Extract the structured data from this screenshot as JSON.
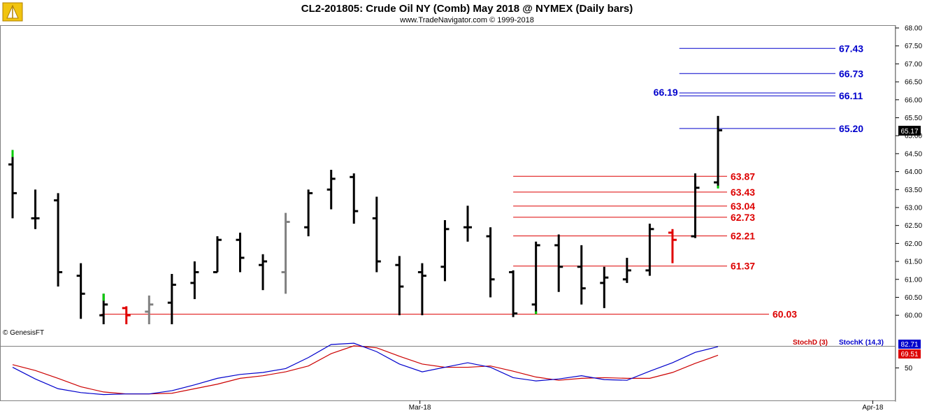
{
  "title": "CL2-201805:  Crude Oil NY (Comb) May 2018 @ NYMEX  (Daily bars)",
  "subtitle": "www.TradeNavigator.com © 1999-2018",
  "watermark": "© GenesisFT",
  "colors": {
    "bar": "#000000",
    "bar_gray": "#808080",
    "bar_green": "#00cc00",
    "bar_red": "#e00000",
    "level_blue": "#0000cc",
    "level_red": "#dd0000",
    "stoch_k": "#0000cc",
    "stoch_d": "#cc0000"
  },
  "chart_data": {
    "type": "ohlc",
    "price_axis": {
      "min": 59.75,
      "max": 68.0,
      "ticks": [
        "60.00",
        "60.50",
        "61.00",
        "61.50",
        "62.00",
        "62.50",
        "63.00",
        "63.50",
        "64.00",
        "64.50",
        "65.00",
        "65.50",
        "66.00",
        "66.50",
        "67.00",
        "67.50",
        "68.00"
      ]
    },
    "x_axis_labels": [
      {
        "label": "Mar-18",
        "bar_index": 17.9
      },
      {
        "label": "Apr-18",
        "bar_index": 37.8
      }
    ],
    "bars": [
      {
        "o": 64.2,
        "h": 64.6,
        "l": 62.7,
        "c": 63.4,
        "color": "green_top"
      },
      {
        "o": 62.7,
        "h": 63.5,
        "l": 62.4,
        "c": 62.7
      },
      {
        "o": 63.2,
        "h": 63.4,
        "l": 60.8,
        "c": 61.2
      },
      {
        "o": 61.1,
        "h": 61.45,
        "l": 59.9,
        "c": 60.6
      },
      {
        "o": 60.0,
        "h": 60.6,
        "l": 59.75,
        "c": 60.3,
        "color": "green_top"
      },
      {
        "o": 60.2,
        "h": 60.25,
        "l": 59.75,
        "c": 60.0,
        "color": "red"
      },
      {
        "o": 60.1,
        "h": 60.55,
        "l": 59.75,
        "c": 60.3,
        "color": "gray"
      },
      {
        "o": 60.35,
        "h": 61.15,
        "l": 59.75,
        "c": 60.85
      },
      {
        "o": 60.9,
        "h": 61.5,
        "l": 60.45,
        "c": 61.2
      },
      {
        "o": 61.2,
        "h": 62.2,
        "l": 61.2,
        "c": 62.1
      },
      {
        "o": 62.1,
        "h": 62.3,
        "l": 61.2,
        "c": 61.6
      },
      {
        "o": 61.4,
        "h": 61.7,
        "l": 60.7,
        "c": 61.5
      },
      {
        "o": 61.2,
        "h": 62.85,
        "l": 60.6,
        "c": 62.6,
        "color": "gray"
      },
      {
        "o": 62.45,
        "h": 63.5,
        "l": 62.2,
        "c": 63.4
      },
      {
        "o": 63.5,
        "h": 64.05,
        "l": 62.95,
        "c": 63.8
      },
      {
        "o": 63.85,
        "h": 63.95,
        "l": 62.55,
        "c": 62.9
      },
      {
        "o": 62.7,
        "h": 63.3,
        "l": 61.2,
        "c": 61.5
      },
      {
        "o": 61.4,
        "h": 61.65,
        "l": 60.0,
        "c": 60.8
      },
      {
        "o": 61.2,
        "h": 61.45,
        "l": 60.0,
        "c": 61.1
      },
      {
        "o": 61.35,
        "h": 62.65,
        "l": 60.95,
        "c": 62.4
      },
      {
        "o": 62.45,
        "h": 63.05,
        "l": 62.05,
        "c": 62.45
      },
      {
        "o": 62.2,
        "h": 62.45,
        "l": 60.5,
        "c": 61.0
      },
      {
        "o": 61.2,
        "h": 61.25,
        "l": 59.95,
        "c": 60.05
      },
      {
        "o": 60.3,
        "h": 62.05,
        "l": 60.05,
        "c": 61.95,
        "color": "green_bottom"
      },
      {
        "o": 61.95,
        "h": 62.25,
        "l": 60.65,
        "c": 61.35
      },
      {
        "o": 61.35,
        "h": 61.95,
        "l": 60.3,
        "c": 60.75
      },
      {
        "o": 60.9,
        "h": 61.35,
        "l": 60.2,
        "c": 61.05
      },
      {
        "o": 61.0,
        "h": 61.6,
        "l": 60.9,
        "c": 61.25
      },
      {
        "o": 61.25,
        "h": 62.55,
        "l": 61.1,
        "c": 62.4
      },
      {
        "o": 62.3,
        "h": 62.4,
        "l": 61.45,
        "c": 62.1,
        "color": "red"
      },
      {
        "o": 62.2,
        "h": 63.95,
        "l": 62.15,
        "c": 63.55
      },
      {
        "o": 63.7,
        "h": 65.55,
        "l": 63.55,
        "c": 65.15,
        "color": "green_bottom"
      }
    ],
    "levels": [
      {
        "value": 67.43,
        "label": "67.43",
        "color": "blue",
        "from_bar": 29.3
      },
      {
        "value": 66.73,
        "label": "66.73",
        "color": "blue",
        "from_bar": 29.3
      },
      {
        "value": 66.19,
        "label": "66.19",
        "color": "blue",
        "from_bar": 29.3,
        "label_side": "left"
      },
      {
        "value": 66.11,
        "label": "66.11",
        "color": "blue",
        "from_bar": 29.3
      },
      {
        "value": 65.2,
        "label": "65.20",
        "color": "blue",
        "from_bar": 29.3
      },
      {
        "value": 63.87,
        "label": "63.87",
        "color": "red",
        "from_bar": 22.0
      },
      {
        "value": 63.43,
        "label": "63.43",
        "color": "red",
        "from_bar": 22.0
      },
      {
        "value": 63.04,
        "label": "63.04",
        "color": "red",
        "from_bar": 22.0
      },
      {
        "value": 62.73,
        "label": "62.73",
        "color": "red",
        "from_bar": 22.0
      },
      {
        "value": 62.21,
        "label": "62.21",
        "color": "red",
        "from_bar": 22.0
      },
      {
        "value": 61.37,
        "label": "61.37",
        "color": "red",
        "from_bar": 22.0
      },
      {
        "value": 60.03,
        "label": "60.03",
        "color": "red",
        "from_bar": 3.9,
        "to_right": true
      }
    ],
    "last_price": "65.17",
    "stochastic": {
      "axis": {
        "min": 0,
        "max": 100,
        "ticks": [
          "50"
        ]
      },
      "stoch_d_label": "StochD (3)",
      "stoch_k_label": "StochK (14,3)",
      "k_last": "82.71",
      "d_last": "69.51",
      "k": [
        51,
        33,
        18,
        12,
        9,
        10,
        10,
        15,
        24,
        34,
        40,
        43,
        49,
        66,
        86,
        88,
        75,
        56,
        44,
        51,
        58,
        51,
        35,
        30,
        33,
        38,
        32,
        31,
        45,
        58,
        74,
        82.7
      ],
      "d": [
        55,
        46,
        34,
        21,
        13,
        10,
        10,
        11,
        18,
        25,
        34,
        38,
        44,
        53,
        72,
        84,
        81,
        68,
        56,
        51,
        51,
        53,
        45,
        36,
        31,
        34,
        35,
        34,
        34,
        43,
        57,
        69.5
      ]
    }
  }
}
